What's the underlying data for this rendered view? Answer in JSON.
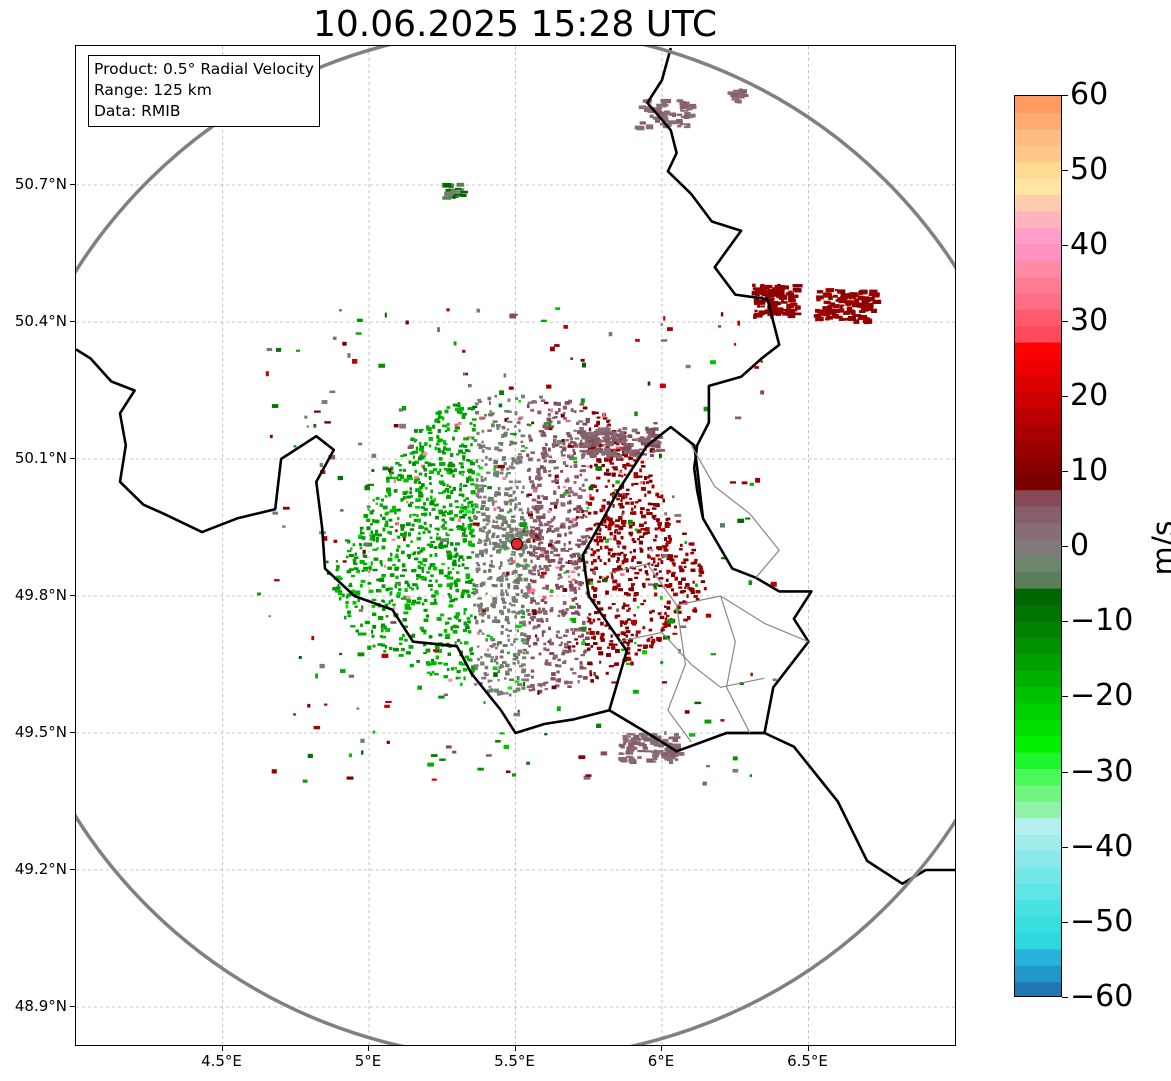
{
  "title": "10.06.2025 15:28 UTC",
  "info": {
    "line1": "Product: 0.5° Radial Velocity",
    "line2": "Range: 125 km",
    "line3": "Data: RMIB"
  },
  "map": {
    "lon_range": [
      4.0,
      7.0
    ],
    "lat_range": [
      48.8,
      50.99
    ],
    "x_ticks": [
      {
        "value": 4.5,
        "label": "4.5°E"
      },
      {
        "value": 5.0,
        "label": "5°E"
      },
      {
        "value": 5.5,
        "label": "5.5°E"
      },
      {
        "value": 6.0,
        "label": "6°E"
      },
      {
        "value": 6.5,
        "label": "6.5°E"
      }
    ],
    "y_ticks": [
      {
        "value": 50.7,
        "label": "50.7°N"
      },
      {
        "value": 50.4,
        "label": "50.4°N"
      },
      {
        "value": 50.1,
        "label": "50.1°N"
      },
      {
        "value": 49.8,
        "label": "49.8°N"
      },
      {
        "value": 49.5,
        "label": "49.5°N"
      },
      {
        "value": 49.2,
        "label": "49.2°N"
      },
      {
        "value": 48.9,
        "label": "48.9°N"
      }
    ],
    "radar_site": {
      "lon": 5.505,
      "lat": 49.914,
      "color": "#e8252b"
    },
    "range_ring_color": "#808080",
    "grid": true
  },
  "colorbar": {
    "unit": "m/s",
    "min": -60,
    "max": 60,
    "ticks": [
      {
        "value": 60,
        "label": "60"
      },
      {
        "value": 50,
        "label": "50"
      },
      {
        "value": 40,
        "label": "40"
      },
      {
        "value": 30,
        "label": "30"
      },
      {
        "value": 20,
        "label": "20"
      },
      {
        "value": 10,
        "label": "10"
      },
      {
        "value": 0,
        "label": "0"
      },
      {
        "value": -10,
        "label": "−10"
      },
      {
        "value": -20,
        "label": "−20"
      },
      {
        "value": -30,
        "label": "−30"
      },
      {
        "value": -40,
        "label": "−40"
      },
      {
        "value": -50,
        "label": "−50"
      },
      {
        "value": -60,
        "label": "−60"
      }
    ],
    "colors": [
      "#1f78b4",
      "#2196c9",
      "#27b2d9",
      "#2ed8de",
      "#35dfe0",
      "#48e2e2",
      "#5ee6e6",
      "#74e8e8",
      "#8ae9ea",
      "#a0eced",
      "#b6eff0",
      "#8ff2a8",
      "#6ff580",
      "#4af85a",
      "#1ff52c",
      "#00ee00",
      "#00e000",
      "#00d000",
      "#00c000",
      "#00b000",
      "#00a000",
      "#009000",
      "#008200",
      "#007400",
      "#006600",
      "#5a7d5a",
      "#6e846c",
      "#807b7b",
      "#886c77",
      "#875e69",
      "#854a55",
      "#7a0000",
      "#8a0000",
      "#9a0000",
      "#aa0000",
      "#ba0000",
      "#cc0000",
      "#dd0000",
      "#ee0000",
      "#ff0000",
      "#ff4a5e",
      "#ff5a6e",
      "#ff6e84",
      "#ff7c95",
      "#ff8aa8",
      "#ff92c0",
      "#ff9ec8",
      "#ffb4c0",
      "#ffccb0",
      "#ffe6a0",
      "#ffda90",
      "#ffc88a",
      "#ffbb80",
      "#ffaa70",
      "#ff9b60"
    ]
  }
}
